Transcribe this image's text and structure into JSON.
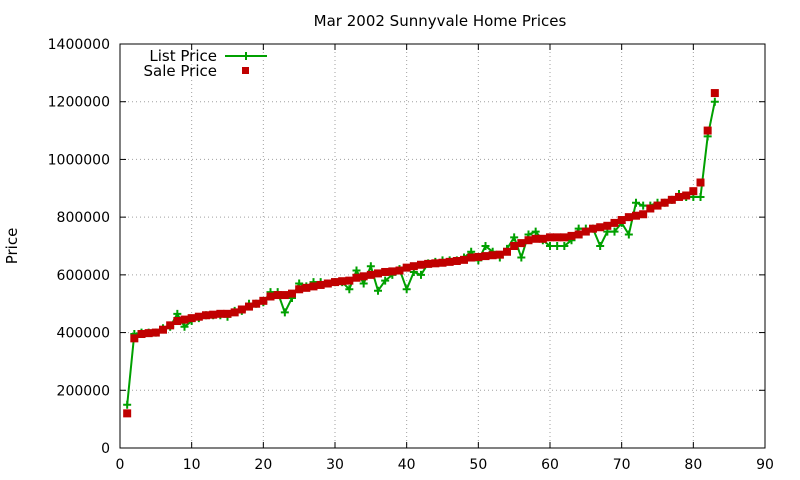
{
  "chart_data": {
    "type": "line",
    "title": "Mar 2002 Sunnyvale Home Prices",
    "xlabel": "",
    "ylabel": "Price",
    "xlim": [
      0,
      90
    ],
    "ylim": [
      0,
      1400000
    ],
    "xticks": [
      0,
      10,
      20,
      30,
      40,
      50,
      60,
      70,
      80,
      90
    ],
    "yticks": [
      0,
      200000,
      400000,
      600000,
      800000,
      1000000,
      1200000,
      1400000
    ],
    "grid": true,
    "legend_position": "top-left",
    "series": [
      {
        "name": "List Price",
        "style": "line-plus",
        "color": "#00a000",
        "x": [
          1,
          2,
          3,
          4,
          5,
          6,
          7,
          8,
          9,
          10,
          11,
          12,
          13,
          14,
          15,
          16,
          17,
          18,
          19,
          20,
          21,
          22,
          23,
          24,
          25,
          26,
          27,
          28,
          29,
          30,
          31,
          32,
          33,
          34,
          35,
          36,
          37,
          38,
          39,
          40,
          41,
          42,
          43,
          44,
          45,
          46,
          47,
          48,
          49,
          50,
          51,
          52,
          53,
          54,
          55,
          56,
          57,
          58,
          59,
          60,
          61,
          62,
          63,
          64,
          65,
          66,
          67,
          68,
          69,
          70,
          71,
          72,
          73,
          74,
          75,
          76,
          77,
          78,
          79,
          80,
          81,
          82,
          83
        ],
        "y": [
          150000,
          395000,
          400000,
          400000,
          400000,
          415000,
          420000,
          465000,
          420000,
          440000,
          450000,
          460000,
          460000,
          460000,
          455000,
          475000,
          475000,
          500000,
          500000,
          505000,
          540000,
          540000,
          470000,
          520000,
          570000,
          560000,
          575000,
          575000,
          570000,
          575000,
          575000,
          550000,
          615000,
          570000,
          630000,
          545000,
          580000,
          600000,
          620000,
          550000,
          610000,
          600000,
          640000,
          645000,
          650000,
          650000,
          650000,
          660000,
          680000,
          650000,
          700000,
          680000,
          660000,
          690000,
          730000,
          660000,
          740000,
          750000,
          720000,
          700000,
          700000,
          700000,
          720000,
          760000,
          760000,
          760000,
          700000,
          750000,
          750000,
          780000,
          740000,
          850000,
          840000,
          840000,
          850000,
          850000,
          860000,
          880000,
          870000,
          870000,
          870000,
          1080000,
          1200000
        ]
      },
      {
        "name": "Sale Price",
        "style": "square-points",
        "color": "#c00000",
        "x": [
          1,
          2,
          3,
          4,
          5,
          6,
          7,
          8,
          9,
          10,
          11,
          12,
          13,
          14,
          15,
          16,
          17,
          18,
          19,
          20,
          21,
          22,
          23,
          24,
          25,
          26,
          27,
          28,
          29,
          30,
          31,
          32,
          33,
          34,
          35,
          36,
          37,
          38,
          39,
          40,
          41,
          42,
          43,
          44,
          45,
          46,
          47,
          48,
          49,
          50,
          51,
          52,
          53,
          54,
          55,
          56,
          57,
          58,
          59,
          60,
          61,
          62,
          63,
          64,
          65,
          66,
          67,
          68,
          69,
          70,
          71,
          72,
          73,
          74,
          75,
          76,
          77,
          78,
          79,
          80,
          81,
          82,
          83
        ],
        "y": [
          120000,
          380000,
          395000,
          398000,
          400000,
          410000,
          425000,
          440000,
          445000,
          450000,
          455000,
          460000,
          462000,
          465000,
          465000,
          470000,
          480000,
          490000,
          500000,
          510000,
          525000,
          530000,
          530000,
          535000,
          550000,
          555000,
          560000,
          565000,
          570000,
          575000,
          578000,
          580000,
          590000,
          595000,
          600000,
          605000,
          610000,
          612000,
          615000,
          625000,
          630000,
          635000,
          638000,
          640000,
          642000,
          645000,
          648000,
          652000,
          660000,
          662000,
          665000,
          668000,
          670000,
          680000,
          700000,
          710000,
          720000,
          725000,
          725000,
          730000,
          730000,
          730000,
          735000,
          740000,
          750000,
          760000,
          765000,
          770000,
          780000,
          790000,
          800000,
          805000,
          810000,
          830000,
          840000,
          850000,
          860000,
          870000,
          875000,
          890000,
          920000,
          1100000,
          1230000
        ]
      }
    ]
  }
}
